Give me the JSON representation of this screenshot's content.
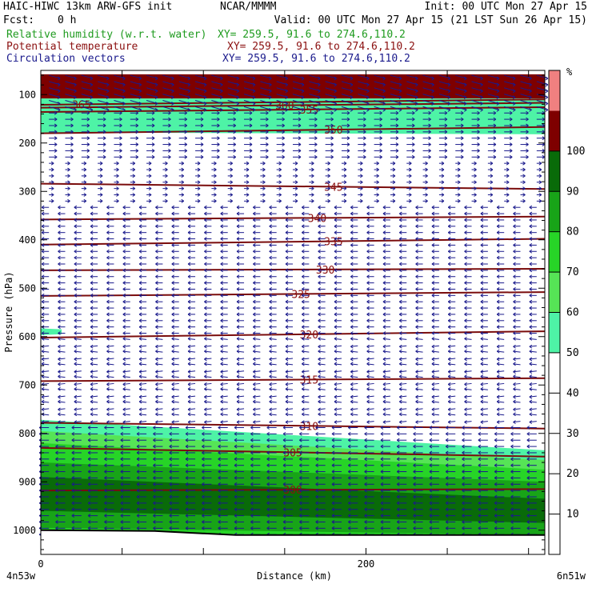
{
  "header": {
    "title_line": "HAIC-HIWC 13km ARW-GFS init",
    "center": "NCAR/MMMM",
    "init": "Init: 00 UTC Mon 27 Apr 15",
    "fcst_label": "Fcst:",
    "fcst_value": "0 h",
    "valid": "Valid: 00 UTC Mon 27 Apr 15 (21 LST Sun 26 Apr 15)",
    "fields": [
      {
        "label": "Relative humidity (w.r.t. water)",
        "xy": "XY= 259.5, 91.6 to 274.6,110.2",
        "color": "#1f9b1f"
      },
      {
        "label": "Potential temperature",
        "xy": "XY= 259.5, 91.6 to 274.6,110.2",
        "color": "#8b1010"
      },
      {
        "label": "Circulation vectors",
        "xy": "XY= 259.5, 91.6 to 274.6,110.2",
        "color": "#1a1a8c"
      }
    ]
  },
  "colorbar": {
    "unit": "%",
    "ticks": [
      "10",
      "20",
      "30",
      "40",
      "50",
      "60",
      "70",
      "80",
      "90",
      "100"
    ],
    "colors": [
      "#ffffff",
      "#ffffff",
      "#ffffff",
      "#ffffff",
      "#ffffff",
      "#4ef3a6",
      "#56e456",
      "#27d427",
      "#18a418",
      "#096b09",
      "#7e0000",
      "#f08080"
    ]
  },
  "chart_data": {
    "type": "cross-section contour",
    "xlabel": "Distance (km)",
    "ylabel": "Pressure (hPa)",
    "x_range_km": [
      0,
      310
    ],
    "x_ticks": [
      {
        "v": 0,
        "label": "0"
      },
      {
        "v": 50,
        "label": ""
      },
      {
        "v": 100,
        "label": ""
      },
      {
        "v": 150,
        "label": ""
      },
      {
        "v": 200,
        "label": "200"
      },
      {
        "v": 250,
        "label": ""
      },
      {
        "v": 300,
        "label": ""
      }
    ],
    "y_range_hpa": [
      1050,
      50
    ],
    "y_ticks": [
      100,
      200,
      300,
      400,
      500,
      600,
      700,
      800,
      900,
      1000
    ],
    "x_end_labels": {
      "left": "4n53w",
      "right": "6n51w"
    },
    "theta_contours": [
      {
        "level": 365,
        "label": "365",
        "left": 121,
        "right": 110,
        "label_x": 25
      },
      {
        "level": 360,
        "label": "360",
        "left": 127,
        "right": 117,
        "label_x": 150
      },
      {
        "level": 355,
        "label": "355",
        "left": 136,
        "right": 126,
        "label_x": 165
      },
      {
        "level": 350,
        "label": "350",
        "left": 180,
        "right": 167,
        "label_x": 180
      },
      {
        "level": 345,
        "label": "345",
        "left": 284,
        "right": 295,
        "label_x": 180
      },
      {
        "level": 340,
        "label": "340",
        "left": 358,
        "right": 352,
        "label_x": 170
      },
      {
        "level": 335,
        "label": "335",
        "left": 410,
        "right": 398,
        "label_x": 180
      },
      {
        "level": 330,
        "label": "330",
        "left": 463,
        "right": 460,
        "label_x": 175
      },
      {
        "level": 325,
        "label": "325",
        "left": 516,
        "right": 508,
        "label_x": 160
      },
      {
        "level": 320,
        "label": "320",
        "left": 602,
        "right": 589,
        "label_x": 165
      },
      {
        "level": 315,
        "label": "315",
        "left": 692,
        "right": 686,
        "label_x": 165
      },
      {
        "level": 310,
        "label": "310",
        "left": 778,
        "right": 790,
        "label_x": 165
      },
      {
        "level": 305,
        "label": "305",
        "left": 830,
        "right": 848,
        "label_x": 155
      },
      {
        "level": 300,
        "label": "300",
        "left": 918,
        "right": 915,
        "label_x": 155
      }
    ],
    "rh_regions": [
      {
        "range": ">100",
        "color": "#7e0000",
        "top": [
          58,
          58
        ],
        "bottom": [
          108,
          108
        ]
      },
      {
        "range": "50-60",
        "color": "#4ef3a6",
        "top": [
          108,
          108
        ],
        "bottom": [
          178,
          182
        ]
      },
      {
        "range": "50-60",
        "color": "#4ef3a6",
        "top": [
          772,
          835
        ],
        "bottom": [
          1000,
          1020
        ]
      },
      {
        "range": "60-70",
        "color": "#56e456",
        "top": [
          795,
          855
        ],
        "bottom": [
          1000,
          1020
        ]
      },
      {
        "range": "70-80",
        "color": "#27d427",
        "top": [
          820,
          875
        ],
        "bottom": [
          1000,
          1020
        ]
      },
      {
        "range": "80-90",
        "color": "#18a418",
        "top": [
          860,
          900
        ],
        "bottom": [
          995,
          1010
        ]
      },
      {
        "range": "90-100",
        "color": "#096b09",
        "top": [
          890,
          935
        ],
        "bottom": [
          960,
          985
        ]
      }
    ],
    "terrain_surface_hpa": [
      1000,
      1010
    ],
    "wind": {
      "upper_westerly_above_hpa": 230,
      "mid_easterly_below_hpa": 330
    }
  }
}
